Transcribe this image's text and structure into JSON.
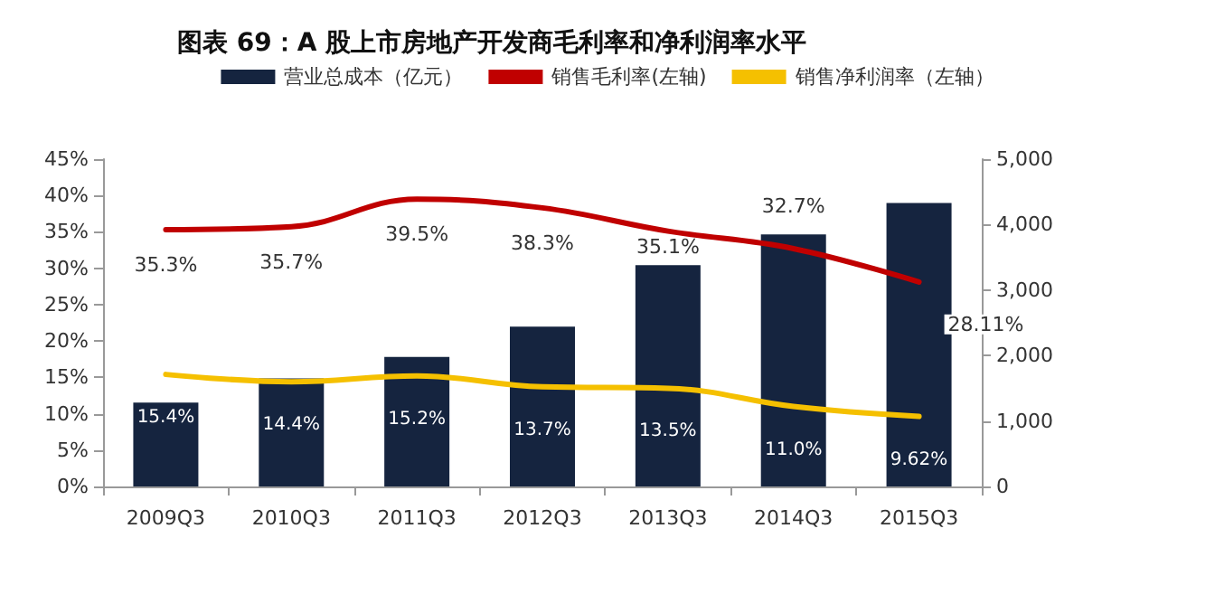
{
  "chart_data": {
    "type": "bar",
    "title": "图表 69：A 股上市房地产开发商毛利率和净利润率水平",
    "categories": [
      "2009Q3",
      "2010Q3",
      "2011Q3",
      "2012Q3",
      "2013Q3",
      "2014Q3",
      "2015Q3"
    ],
    "series": [
      {
        "name": "营业总成本（亿元）",
        "type": "bar",
        "axis": "y2",
        "color": "#15243f",
        "values": [
          1280,
          1650,
          1980,
          2440,
          3380,
          3850,
          4330
        ]
      },
      {
        "name": "销售毛利率(左轴)",
        "type": "line",
        "color": "#c00000",
        "values": [
          35.3,
          35.7,
          39.5,
          38.3,
          35.1,
          32.7,
          28.11
        ],
        "value_labels": [
          "35.3%",
          "35.7%",
          "39.5%",
          "38.3%",
          "35.1%",
          "32.7%",
          "28.11%"
        ]
      },
      {
        "name": "销售净利润率（左轴）",
        "type": "line",
        "color": "#f5c000",
        "values": [
          15.4,
          14.4,
          15.2,
          13.7,
          13.5,
          11.0,
          9.62
        ],
        "value_labels": [
          "15.4%",
          "14.4%",
          "15.2%",
          "13.7%",
          "13.5%",
          "11.0%",
          "9.62%"
        ]
      }
    ],
    "ylim": [
      0,
      45
    ],
    "yticks": [
      {
        "value": 0,
        "label": "0%"
      },
      {
        "value": 5,
        "label": "5%"
      },
      {
        "value": 10,
        "label": "10%"
      },
      {
        "value": 15,
        "label": "15%"
      },
      {
        "value": 20,
        "label": "20%"
      },
      {
        "value": 25,
        "label": "25%"
      },
      {
        "value": 30,
        "label": "30%"
      },
      {
        "value": 35,
        "label": "35%"
      },
      {
        "value": 40,
        "label": "40%"
      },
      {
        "value": 45,
        "label": "45%"
      }
    ],
    "y2lim": [
      0,
      5000
    ],
    "y2ticks": [
      {
        "value": 0,
        "label": "0"
      },
      {
        "value": 1000,
        "label": "1,000"
      },
      {
        "value": 2000,
        "label": "2,000"
      },
      {
        "value": 3000,
        "label": "3,000"
      },
      {
        "value": 4000,
        "label": "4,000"
      },
      {
        "value": 5000,
        "label": "5,000"
      }
    ],
    "grid": false,
    "legend": "top",
    "marker": "none",
    "line_style": "solid"
  }
}
